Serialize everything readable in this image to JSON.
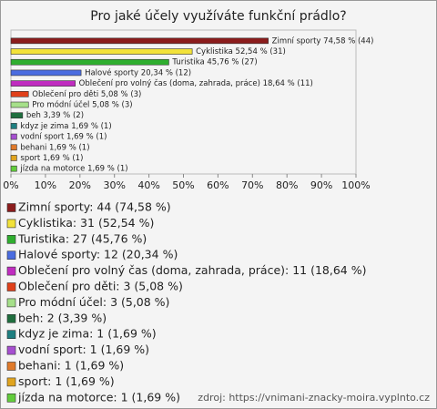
{
  "chart_data": {
    "type": "bar",
    "orientation": "horizontal",
    "title": "Pro jaké účely využíváte funkční prádlo?",
    "categories": [
      "Zimní sporty",
      "Cyklistika",
      "Turistika",
      "Halové sporty",
      "Oblečení pro volný čas (doma, zahrada, práce)",
      "Oblečení pro děti",
      "Pro módní účel",
      "beh",
      "kdyz je zima",
      "vodní sport",
      "behani",
      "sport",
      "jízda na motorce"
    ],
    "values": [
      74.58,
      52.54,
      45.76,
      20.34,
      18.64,
      5.08,
      5.08,
      3.39,
      1.69,
      1.69,
      1.69,
      1.69,
      1.69
    ],
    "counts": [
      44,
      31,
      27,
      12,
      11,
      3,
      3,
      2,
      1,
      1,
      1,
      1,
      1
    ],
    "value_labels": [
      "Zimní sporty 74,58 % (44)",
      "Cyklistika 52,54 % (31)",
      "Turistika 45,76 % (27)",
      "Halové sporty 20,34 % (12)",
      "Oblečení pro volný čas (doma, zahrada, práce) 18,64 % (11)",
      "Oblečení pro děti 5,08 % (3)",
      "Pro módní účel 5,08 % (3)",
      "beh 3,39 % (2)",
      "kdyz je zima 1,69 % (1)",
      "vodní sport 1,69 % (1)",
      "behani 1,69 % (1)",
      "sport 1,69 % (1)",
      "jízda na motorce 1,69 % (1)"
    ],
    "legend_labels": [
      "Zimní sporty: 44 (74,58 %)",
      "Cyklistika: 31 (52,54 %)",
      "Turistika: 27 (45,76 %)",
      "Halové sporty: 12 (20,34 %)",
      "Oblečení pro volný čas (doma, zahrada, práce): 11 (18,64 %)",
      "Oblečení pro děti: 3 (5,08 %)",
      "Pro módní účel: 3 (5,08 %)",
      "beh: 2 (3,39 %)",
      "kdyz je zima: 1 (1,69 %)",
      "vodní sport: 1 (1,69 %)",
      "behani: 1 (1,69 %)",
      "sport: 1 (1,69 %)",
      "jízda na motorce: 1 (1,69 %)"
    ],
    "colors": [
      "#8b1c1c",
      "#f2e23a",
      "#2fae2f",
      "#4a6ce0",
      "#c02cc0",
      "#e0401a",
      "#a6e08a",
      "#1f6e3e",
      "#1e7f80",
      "#a64fd0",
      "#e07a2a",
      "#e0a41e",
      "#62cc3c"
    ],
    "xlim": [
      0,
      100
    ],
    "xticks": [
      {
        "value": 0,
        "label": "0%"
      },
      {
        "value": 10,
        "label": "10%"
      },
      {
        "value": 20,
        "label": "20%"
      },
      {
        "value": 30,
        "label": "30%"
      },
      {
        "value": 40,
        "label": "40%"
      },
      {
        "value": 50,
        "label": "50%"
      },
      {
        "value": 60,
        "label": "60%"
      },
      {
        "value": 70,
        "label": "70%"
      },
      {
        "value": 80,
        "label": "80%"
      },
      {
        "value": 90,
        "label": "90%"
      },
      {
        "value": 100,
        "label": "100%"
      }
    ],
    "source": "zdroj: https://vnimani-znacky-moira.vyplnto.cz"
  }
}
